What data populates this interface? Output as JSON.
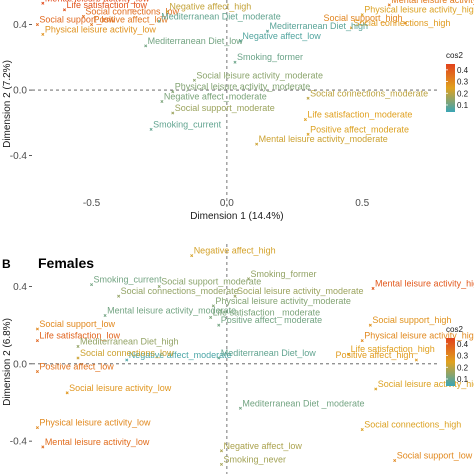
{
  "colors": {
    "low": "#3aa5b5",
    "mid": "#e0a21f",
    "high": "#e2421c"
  },
  "chart_data": [
    {
      "type": "scatter",
      "panel_letter": "",
      "title": "",
      "xlabel": "Dimension 1 (14.4%)",
      "ylabel": "Dimension 2 (7.2%)",
      "xlim": [
        -0.72,
        0.78
      ],
      "ylim": [
        -0.72,
        0.55
      ],
      "xticks": [
        {
          "v": -0.5,
          "label": "-0.5"
        },
        {
          "v": 0,
          "label": "0.0"
        },
        {
          "v": 0.5,
          "label": "0.5"
        }
      ],
      "yticks": [
        {
          "v": 0.4,
          "label": "0.4"
        },
        {
          "v": 0.0,
          "label": "0.0"
        },
        {
          "v": -0.4,
          "label": "-0.4"
        }
      ],
      "legend": {
        "title": "cos2",
        "ticks": [
          0.1,
          0.2,
          0.3,
          0.4
        ],
        "range": [
          0.04,
          0.45
        ],
        "position": "right"
      },
      "points": [
        {
          "label": "Mental leisure activity_low",
          "x": -0.68,
          "y": 0.53,
          "cos2": 0.43
        },
        {
          "label": "Life satisfaction_low",
          "x": -0.6,
          "y": 0.49,
          "cos2": 0.41
        },
        {
          "label": "Social connections_low",
          "x": -0.53,
          "y": 0.45,
          "cos2": 0.36
        },
        {
          "label": "Social support_low",
          "x": -0.7,
          "y": 0.4,
          "cos2": 0.37
        },
        {
          "label": "Positive affect_low",
          "x": -0.5,
          "y": 0.4,
          "cos2": 0.34
        },
        {
          "label": "Physical leisure activity_low",
          "x": -0.68,
          "y": 0.34,
          "cos2": 0.28
        },
        {
          "label": "Negative affect_high",
          "x": -0.22,
          "y": 0.48,
          "cos2": 0.21
        },
        {
          "label": "Mediterranean Diet_moderate",
          "x": -0.25,
          "y": 0.42,
          "cos2": 0.09
        },
        {
          "label": "Mental leisure activity_high",
          "x": 0.6,
          "y": 0.52,
          "cos2": 0.33
        },
        {
          "label": "Physical leisure activity_high",
          "x": 0.5,
          "y": 0.46,
          "cos2": 0.24
        },
        {
          "label": "Social support_high",
          "x": 0.66,
          "y": 0.41,
          "cos2": 0.31
        },
        {
          "label": "Social connections_high",
          "x": 0.46,
          "y": 0.38,
          "cos2": 0.26
        },
        {
          "label": "Mediterranean Diet_high",
          "x": 0.15,
          "y": 0.36,
          "cos2": 0.08
        },
        {
          "label": "Negative affect_low",
          "x": 0.05,
          "y": 0.3,
          "cos2": 0.07
        },
        {
          "label": "Mediterranean Diet_low",
          "x": -0.3,
          "y": 0.27,
          "cos2": 0.11
        },
        {
          "label": "Smoking_former",
          "x": 0.03,
          "y": 0.17,
          "cos2": 0.1
        },
        {
          "label": "Social leisure activity_moderate",
          "x": -0.12,
          "y": 0.06,
          "cos2": 0.14
        },
        {
          "label": "Physical leisure activity_moderate",
          "x": -0.2,
          "y": -0.01,
          "cos2": 0.13
        },
        {
          "label": "Negative affect_moderate",
          "x": -0.24,
          "y": -0.07,
          "cos2": 0.12
        },
        {
          "label": "Social support_moderate",
          "x": -0.2,
          "y": -0.14,
          "cos2": 0.16
        },
        {
          "label": "Social connections_moderate",
          "x": 0.3,
          "y": -0.05,
          "cos2": 0.2
        },
        {
          "label": "Smoking_current",
          "x": -0.28,
          "y": -0.24,
          "cos2": 0.09
        },
        {
          "label": "Life satisfaction_moderate",
          "x": 0.29,
          "y": -0.18,
          "cos2": 0.25
        },
        {
          "label": "Positive affect_moderate",
          "x": 0.3,
          "y": -0.27,
          "cos2": 0.24
        },
        {
          "label": "Mental leisure activity_moderate",
          "x": 0.11,
          "y": -0.33,
          "cos2": 0.22
        }
      ]
    },
    {
      "type": "scatter",
      "panel_letter": "B",
      "title": "Females",
      "xlabel": "",
      "ylabel": "Dimension 2 (6.8%)",
      "xlim": [
        -0.72,
        0.78
      ],
      "ylim": [
        -0.57,
        0.62
      ],
      "xticks": [],
      "yticks": [
        {
          "v": 0.4,
          "label": "0.4"
        },
        {
          "v": 0.0,
          "label": "0.0"
        },
        {
          "v": -0.4,
          "label": "-0.4"
        }
      ],
      "legend": {
        "title": "cos2",
        "ticks": [
          0.1,
          0.2,
          0.3,
          0.4
        ],
        "range": [
          0.04,
          0.45
        ],
        "position": "right"
      },
      "points": [
        {
          "label": "Negative affect_high",
          "x": -0.13,
          "y": 0.56,
          "cos2": 0.23
        },
        {
          "label": "Smoking_current",
          "x": -0.5,
          "y": 0.41,
          "cos2": 0.11
        },
        {
          "label": "Smoking_former",
          "x": 0.08,
          "y": 0.44,
          "cos2": 0.15
        },
        {
          "label": "Social support_moderate",
          "x": -0.25,
          "y": 0.4,
          "cos2": 0.14
        },
        {
          "label": "Social connections_moderate",
          "x": -0.4,
          "y": 0.35,
          "cos2": 0.15
        },
        {
          "label": "Social leisure activity_moderate",
          "x": 0.03,
          "y": 0.35,
          "cos2": 0.16
        },
        {
          "label": "Mental leisure activity_high",
          "x": 0.54,
          "y": 0.39,
          "cos2": 0.4
        },
        {
          "label": "Physical leisure activity_moderate",
          "x": -0.05,
          "y": 0.3,
          "cos2": 0.13
        },
        {
          "label": "Mental leisure activity_moderate",
          "x": -0.45,
          "y": 0.25,
          "cos2": 0.11
        },
        {
          "label": "Life satisfaction _moderate",
          "x": -0.06,
          "y": 0.24,
          "cos2": 0.12
        },
        {
          "label": "Positive affect_ moderate",
          "x": -0.03,
          "y": 0.2,
          "cos2": 0.11
        },
        {
          "label": "Social support_low",
          "x": -0.7,
          "y": 0.18,
          "cos2": 0.3
        },
        {
          "label": "Social support_high",
          "x": 0.53,
          "y": 0.2,
          "cos2": 0.28
        },
        {
          "label": "Life satisfaction_low",
          "x": -0.7,
          "y": 0.12,
          "cos2": 0.38
        },
        {
          "label": "Mediterranean Diet_high",
          "x": -0.55,
          "y": 0.09,
          "cos2": 0.15
        },
        {
          "label": "Physical leisure activity_high",
          "x": 0.5,
          "y": 0.12,
          "cos2": 0.3
        },
        {
          "label": "Negative affect_moderate",
          "x": -0.37,
          "y": 0.02,
          "cos2": 0.06
        },
        {
          "label": "Social connections_low",
          "x": -0.55,
          "y": 0.03,
          "cos2": 0.22
        },
        {
          "label": "Mediterranean Diet_low",
          "x": -0.03,
          "y": 0.03,
          "cos2": 0.09
        },
        {
          "label": "Life satisfaction_high",
          "x": 0.45,
          "y": 0.05,
          "cos2": 0.25
        },
        {
          "label": "Positive affect_high",
          "x": 0.7,
          "y": 0.02,
          "cos2": 0.26
        },
        {
          "label": "Positive affect_low",
          "x": -0.7,
          "y": -0.04,
          "cos2": 0.35
        },
        {
          "label": "Social leisure activity_low",
          "x": -0.59,
          "y": -0.15,
          "cos2": 0.27
        },
        {
          "label": "Social leisure activity_high",
          "x": 0.55,
          "y": -0.13,
          "cos2": 0.24
        },
        {
          "label": "Mediterranean Diet _moderate",
          "x": 0.05,
          "y": -0.23,
          "cos2": 0.11
        },
        {
          "label": "Physical leisure activity_low",
          "x": -0.7,
          "y": -0.33,
          "cos2": 0.3
        },
        {
          "label": "Social connections_high",
          "x": 0.5,
          "y": -0.34,
          "cos2": 0.24
        },
        {
          "label": "Mental leisure activity_low",
          "x": -0.68,
          "y": -0.43,
          "cos2": 0.36
        },
        {
          "label": "Negative affect_low",
          "x": -0.02,
          "y": -0.45,
          "cos2": 0.18
        },
        {
          "label": "Smoking_never",
          "x": -0.02,
          "y": -0.52,
          "cos2": 0.17
        },
        {
          "label": "Social support_low",
          "x": 0.62,
          "y": -0.5,
          "cos2": 0.3
        }
      ]
    }
  ]
}
